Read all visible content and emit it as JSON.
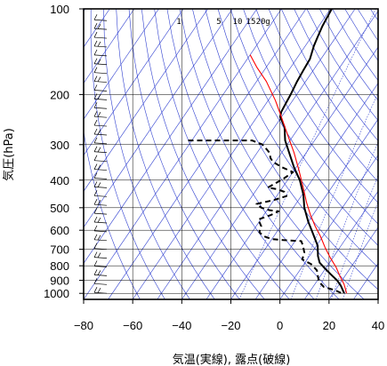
{
  "chart_data": {
    "type": "line",
    "chart_kind": "skew-T log-p emagram",
    "xlabel": "気温(実線), 露点(破線)",
    "ylabel": "気圧(hPa)",
    "xlim": [
      -80,
      40
    ],
    "ylim": [
      1050,
      100
    ],
    "y_scale": "log",
    "x_ticks": [
      "−80",
      "−60",
      "−40",
      "−20",
      "0",
      "20",
      "40"
    ],
    "x_tick_values": [
      -80,
      -60,
      -40,
      -20,
      0,
      20,
      40
    ],
    "y_ticks": [
      "100",
      "200",
      "300",
      "400",
      "500",
      "600",
      "700",
      "800",
      "900",
      "1000"
    ],
    "y_tick_values": [
      100,
      200,
      300,
      400,
      500,
      600,
      700,
      800,
      900,
      1000
    ],
    "grid": true,
    "mixing_ratio_labels": [
      "1",
      "5",
      "10",
      "15",
      "20",
      "g"
    ],
    "colors": {
      "temperature": "#000000",
      "dewpoint": "#000000",
      "parcel": "#ff0000",
      "background_lines": "#3040d0",
      "grid": "#000000"
    },
    "series": [
      {
        "name": "気温",
        "style": "solid",
        "points": [
          [
            -59.5,
            100
          ],
          [
            -58.5,
            115
          ],
          [
            -57.5,
            125
          ],
          [
            -56.5,
            135
          ],
          [
            -54.5,
            150
          ],
          [
            -54,
            165
          ],
          [
            -53.5,
            180
          ],
          [
            -52.5,
            200
          ],
          [
            -52,
            215
          ],
          [
            -51.5,
            230
          ],
          [
            -50.5,
            240
          ],
          [
            -46,
            260
          ],
          [
            -42,
            290
          ],
          [
            -37,
            320
          ],
          [
            -31,
            360
          ],
          [
            -25,
            400
          ],
          [
            -19.5,
            450
          ],
          [
            -15.5,
            500
          ],
          [
            -10,
            560
          ],
          [
            -4.5,
            620
          ],
          [
            0.5,
            680
          ],
          [
            3.5,
            740
          ],
          [
            6,
            780
          ],
          [
            10,
            820
          ],
          [
            14,
            860
          ],
          [
            18,
            900
          ],
          [
            21,
            940
          ],
          [
            24.5,
            1000
          ]
        ]
      },
      {
        "name": "露点",
        "style": "dashed",
        "points": [
          [
            -81.5,
            290
          ],
          [
            -55.5,
            290
          ],
          [
            -50,
            300
          ],
          [
            -45,
            320
          ],
          [
            -43,
            335
          ],
          [
            -41,
            345
          ],
          [
            -36,
            360
          ],
          [
            -30,
            375
          ],
          [
            -32,
            395
          ],
          [
            -34,
            410
          ],
          [
            -36,
            425
          ],
          [
            -32,
            430
          ],
          [
            -28,
            440
          ],
          [
            -26,
            455
          ],
          [
            -30,
            470
          ],
          [
            -36,
            485
          ],
          [
            -33,
            500
          ],
          [
            -29,
            510
          ],
          [
            -25,
            515
          ],
          [
            -27,
            530
          ],
          [
            -31,
            550
          ],
          [
            -28,
            580
          ],
          [
            -27,
            610
          ],
          [
            -24,
            630
          ],
          [
            -20,
            645
          ],
          [
            -15,
            650
          ],
          [
            -7.5,
            655
          ],
          [
            -5.5,
            680
          ],
          [
            -3,
            720
          ],
          [
            -2,
            760
          ],
          [
            3,
            790
          ],
          [
            7,
            830
          ],
          [
            9,
            870
          ],
          [
            11,
            910
          ],
          [
            14.5,
            950
          ],
          [
            20,
            975
          ],
          [
            23.5,
            1000
          ]
        ]
      },
      {
        "name": "",
        "style": "solid-red",
        "points": [
          [
            -80,
            145
          ],
          [
            -74,
            160
          ],
          [
            -66,
            180
          ],
          [
            -57,
            210
          ],
          [
            -50,
            240
          ],
          [
            -42,
            280
          ],
          [
            -35,
            320
          ],
          [
            -28,
            370
          ],
          [
            -21,
            430
          ],
          [
            -16,
            480
          ],
          [
            -11,
            530
          ],
          [
            -6,
            580
          ],
          [
            -1,
            630
          ],
          [
            4,
            690
          ],
          [
            9,
            750
          ],
          [
            14,
            810
          ],
          [
            18,
            870
          ],
          [
            22,
            930
          ],
          [
            25.5,
            1000
          ]
        ]
      }
    ],
    "wind_barbs": {
      "count": 32,
      "pressure_range": [
        1000,
        110
      ]
    }
  }
}
